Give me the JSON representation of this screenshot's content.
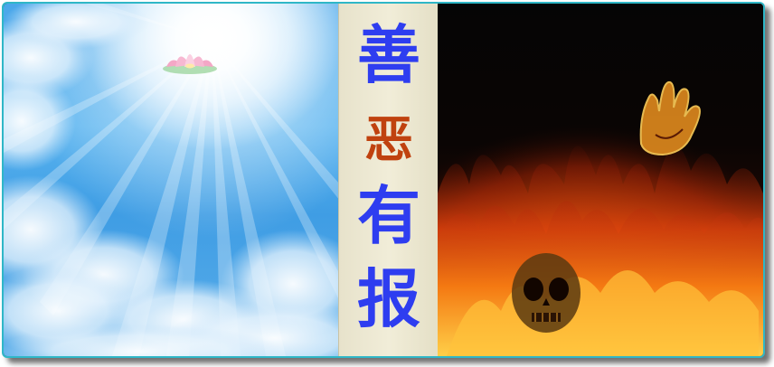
{
  "title": {
    "chars": [
      "善",
      "恶",
      "有",
      "报"
    ]
  },
  "colors": {
    "title_blue": "#2e3df0",
    "title_orange": "#c0420f",
    "border_teal": "#2fb7c7",
    "strip_beige": "#efe9d2"
  },
  "panels": {
    "left": "sky-light-clouds-lotus",
    "right": "fire-flames-skull-hand"
  }
}
